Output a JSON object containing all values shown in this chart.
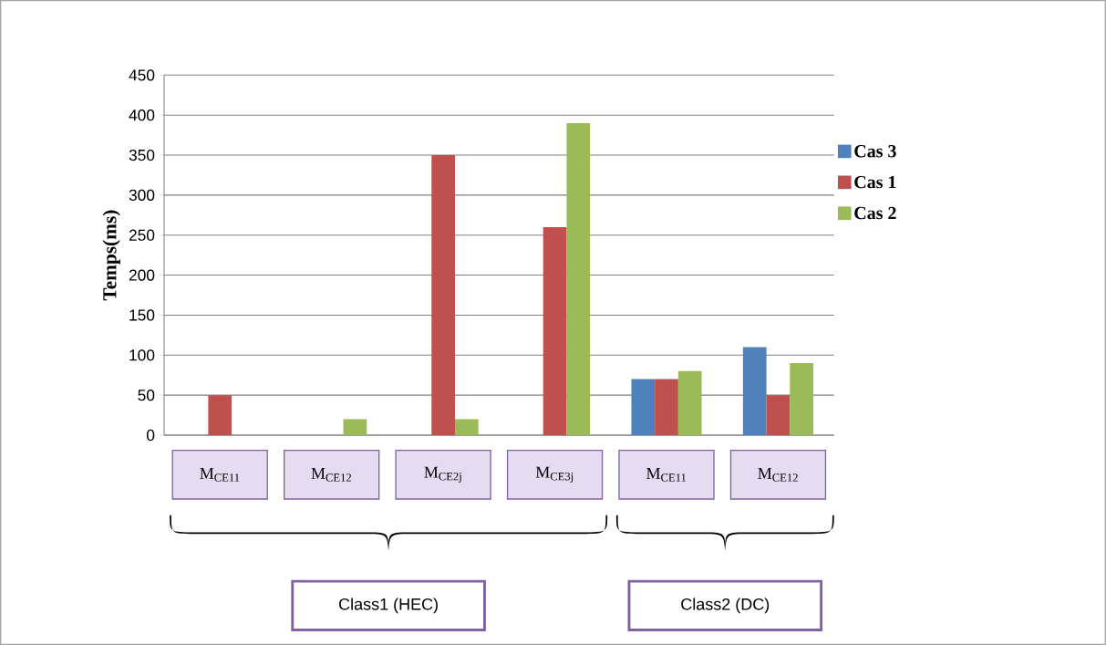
{
  "chart_data": {
    "type": "bar",
    "ylabel": "Temps(ms)",
    "categories": [
      "M$_{CE11}$",
      "M$_{CE12}$",
      "M$_{CE2j}$",
      "M$_{CE3j}$",
      "M$_{CE11}$",
      "M$_{CE12}$"
    ],
    "series": [
      {
        "name": "Cas 3",
        "color": "#4f81bd",
        "values": [
          null,
          null,
          null,
          null,
          70,
          110
        ]
      },
      {
        "name": "Cas 1",
        "color": "#c0504d",
        "values": [
          50,
          null,
          350,
          260,
          70,
          50
        ]
      },
      {
        "name": "Cas 2",
        "color": "#9bbb59",
        "values": [
          null,
          20,
          20,
          390,
          80,
          90
        ]
      }
    ],
    "ylim": [
      0,
      450
    ],
    "yticks": [
      0,
      50,
      100,
      150,
      200,
      250,
      300,
      350,
      400,
      450
    ],
    "grid": "y",
    "legend": "right",
    "annotations": [
      "Class1 (HEC)",
      "Class2 (DC)"
    ]
  }
}
